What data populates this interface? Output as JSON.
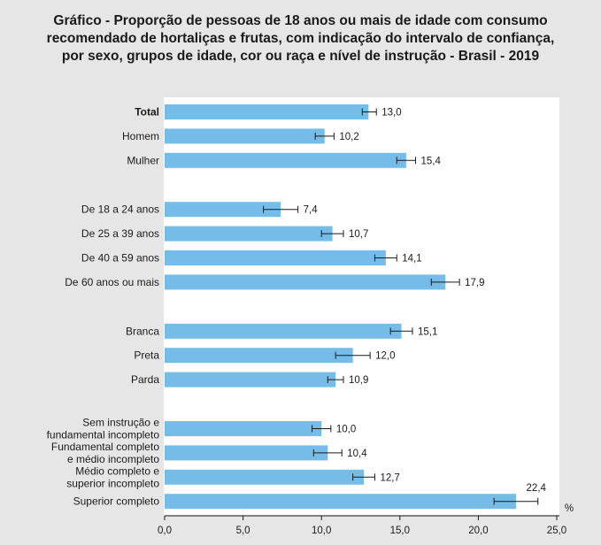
{
  "chart_data": {
    "type": "bar",
    "orientation": "horizontal",
    "title": [
      "Gráfico - Proporção de pessoas de 18 anos ou mais de idade com consumo",
      "recomendado de hortaliças e frutas, com indicação do intervalo de confiança,",
      "por sexo, grupos de idade, cor ou raça e nível de instrução - Brasil - 2019"
    ],
    "unit": "%",
    "xlim": [
      0,
      25
    ],
    "xticks": [
      "0,0",
      "5,0",
      "10,0",
      "15,0",
      "20,0",
      "25,0"
    ],
    "bar_color": "#75bce8",
    "groups": [
      {
        "bars": [
          {
            "label": [
              "Total"
            ],
            "bold": true,
            "value": 13.0,
            "value_label": "13,0",
            "ci": [
              12.6,
              13.5
            ]
          },
          {
            "label": [
              "Homem"
            ],
            "bold": false,
            "value": 10.2,
            "value_label": "10,2",
            "ci": [
              9.6,
              10.8
            ]
          },
          {
            "label": [
              "Mulher"
            ],
            "bold": false,
            "value": 15.4,
            "value_label": "15,4",
            "ci": [
              14.8,
              16.0
            ]
          }
        ]
      },
      {
        "bars": [
          {
            "label": [
              "De 18 a 24 anos"
            ],
            "bold": false,
            "value": 7.4,
            "value_label": "7,4",
            "ci": [
              6.3,
              8.5
            ]
          },
          {
            "label": [
              "De 25 a 39 anos"
            ],
            "bold": false,
            "value": 10.7,
            "value_label": "10,7",
            "ci": [
              10.0,
              11.4
            ]
          },
          {
            "label": [
              "De 40 a 59 anos"
            ],
            "bold": false,
            "value": 14.1,
            "value_label": "14,1",
            "ci": [
              13.4,
              14.8
            ]
          },
          {
            "label": [
              "De 60 anos ou mais"
            ],
            "bold": false,
            "value": 17.9,
            "value_label": "17,9",
            "ci": [
              17.0,
              18.8
            ]
          }
        ]
      },
      {
        "bars": [
          {
            "label": [
              "Branca"
            ],
            "bold": false,
            "value": 15.1,
            "value_label": "15,1",
            "ci": [
              14.4,
              15.8
            ]
          },
          {
            "label": [
              "Preta"
            ],
            "bold": false,
            "value": 12.0,
            "value_label": "12,0",
            "ci": [
              10.9,
              13.1
            ]
          },
          {
            "label": [
              "Parda"
            ],
            "bold": false,
            "value": 10.9,
            "value_label": "10,9",
            "ci": [
              10.4,
              11.4
            ]
          }
        ]
      },
      {
        "bars": [
          {
            "label": [
              "Sem instrução e",
              "fundamental incompleto"
            ],
            "bold": false,
            "value": 10.0,
            "value_label": "10,0",
            "ci": [
              9.4,
              10.6
            ]
          },
          {
            "label": [
              "Fundamental completo",
              "e médio incompleto"
            ],
            "bold": false,
            "value": 10.4,
            "value_label": "10,4",
            "ci": [
              9.5,
              11.3
            ]
          },
          {
            "label": [
              "Médio completo e",
              "superior incompleto"
            ],
            "bold": false,
            "value": 12.7,
            "value_label": "12,7",
            "ci": [
              12.0,
              13.4
            ]
          },
          {
            "label": [
              "Superior completo"
            ],
            "bold": false,
            "value": 22.4,
            "value_label": "22,4",
            "ci": [
              21.0,
              23.8
            ]
          }
        ]
      }
    ]
  }
}
